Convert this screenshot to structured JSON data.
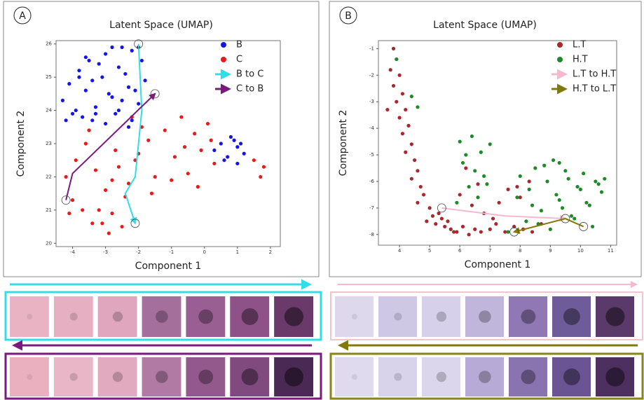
{
  "chart_data": [
    {
      "type": "scatter",
      "panel_label": "A",
      "title": "Latent Space (UMAP)",
      "x_label": "Component 1",
      "y_label": "Component 2",
      "xlim": [
        -4.5,
        2.3
      ],
      "xticks": [
        -4,
        -3,
        -2,
        -1,
        0,
        1,
        2
      ],
      "ylim": [
        19.9,
        26.1
      ],
      "yticks": [
        20,
        21,
        22,
        23,
        24,
        25,
        26
      ],
      "grid": false,
      "legend": "upper right",
      "series": [
        {
          "name": "B",
          "color": "#1515e8",
          "marker": "dot",
          "x": [
            -4.3,
            -4.1,
            -4.0,
            -3.8,
            -3.6,
            -3.5,
            -3.3,
            -3.1,
            -3.0,
            -2.8,
            -2.6,
            -2.5,
            -2.3,
            -2.2,
            -2.0,
            -3.9,
            -3.7,
            -3.4,
            -3.2,
            -2.9,
            -2.7,
            -2.4,
            -2.1,
            -1.9,
            -4.2,
            -3.6,
            -3.0,
            -2.6,
            -2.2,
            -1.8,
            -3.3,
            -2.8,
            -2.5,
            -2.3,
            -3.8,
            -3.4,
            -2.0,
            0.3,
            0.5,
            0.7,
            0.9,
            1.0,
            1.1,
            1.2,
            0.6,
            0.8,
            1.0
          ],
          "values": [
            24.3,
            24.8,
            23.9,
            25.2,
            24.6,
            25.5,
            24.1,
            25.0,
            25.7,
            24.4,
            25.3,
            25.9,
            24.7,
            25.8,
            24.2,
            24.0,
            23.8,
            24.9,
            25.4,
            24.5,
            23.9,
            25.1,
            24.6,
            25.5,
            23.7,
            25.6,
            23.6,
            24.0,
            23.7,
            24.9,
            23.9,
            25.9,
            24.3,
            23.5,
            25.0,
            23.7,
            25.9,
            22.8,
            23.0,
            22.6,
            23.1,
            22.4,
            23.0,
            22.7,
            22.5,
            23.2,
            22.9
          ]
        },
        {
          "name": "C",
          "color": "#e81a1a",
          "marker": "dot",
          "x": [
            -4.2,
            -4.0,
            -3.9,
            -3.7,
            -3.5,
            -3.3,
            -3.1,
            -3.0,
            -2.8,
            -2.7,
            -2.5,
            -2.4,
            -2.2,
            -2.1,
            -1.9,
            -1.7,
            -1.5,
            -3.6,
            -3.2,
            -2.9,
            -2.6,
            -2.3,
            -2.0,
            -1.6,
            -1.2,
            -0.9,
            -0.7,
            -0.5,
            -0.3,
            -0.1,
            0.1,
            0.3,
            -1.0,
            -0.6,
            -0.2,
            0.2,
            1.5,
            1.7,
            1.8,
            -4.1,
            -3.4,
            -2.8
          ],
          "values": [
            22.0,
            21.3,
            22.5,
            21.0,
            23.4,
            22.2,
            20.6,
            21.6,
            20.9,
            22.8,
            20.5,
            21.4,
            23.8,
            22.5,
            23.5,
            23.1,
            22.0,
            23.0,
            21.0,
            20.3,
            22.3,
            21.8,
            22.7,
            21.5,
            23.4,
            22.6,
            23.8,
            22.1,
            23.3,
            22.8,
            23.6,
            22.4,
            21.9,
            22.9,
            21.7,
            23.1,
            22.5,
            22.0,
            22.3,
            20.9,
            20.6,
            21.9
          ]
        },
        {
          "name": "B to C",
          "color": "#33dde6",
          "marker": "arrow",
          "x": [
            -2.0,
            -1.9,
            -2.1,
            -2.4,
            -2.1
          ],
          "values": [
            26.0,
            24.0,
            22.0,
            21.5,
            20.6
          ]
        },
        {
          "name": "C to B",
          "color": "#7a1a7e",
          "marker": "arrow",
          "x": [
            -4.2,
            -4.0,
            -1.5
          ],
          "values": [
            21.3,
            22.1,
            24.5
          ]
        }
      ]
    },
    {
      "type": "scatter",
      "panel_label": "B",
      "title": "Latent Space (UMAP)",
      "x_label": "Component 1",
      "y_label": "Component 2",
      "xlim": [
        3.3,
        11.2
      ],
      "xticks": [
        4,
        5,
        6,
        7,
        8,
        9,
        10,
        11
      ],
      "ylim": [
        -8.4,
        -0.7
      ],
      "yticks": [
        -1,
        -2,
        -3,
        -4,
        -5,
        -6,
        -7,
        -8
      ],
      "grid": false,
      "legend": "upper right",
      "series": [
        {
          "name": "L.T",
          "color": "#a8282e",
          "marker": "dot",
          "x": [
            3.8,
            3.9,
            3.7,
            4.0,
            3.8,
            4.1,
            3.9,
            4.2,
            4.0,
            3.6,
            4.3,
            4.1,
            4.4,
            4.2,
            4.5,
            4.6,
            4.4,
            4.7,
            4.8,
            4.6,
            5.0,
            5.1,
            4.9,
            5.3,
            5.2,
            5.5,
            5.4,
            5.7,
            5.6,
            5.9,
            6.1,
            6.3,
            6.5,
            6.7,
            7.0,
            7.2,
            7.5,
            7.8,
            8.1,
            8.4,
            8.7,
            6.0,
            6.4,
            6.8,
            7.3,
            7.9,
            8.3,
            6.2,
            6.6,
            7.1,
            5.8,
            8.0,
            7.6
          ],
          "values": [
            -1.0,
            -1.4,
            -1.8,
            -2.0,
            -2.4,
            -2.7,
            -3.0,
            -3.3,
            -3.6,
            -3.3,
            -3.9,
            -4.2,
            -4.6,
            -4.9,
            -5.2,
            -5.6,
            -5.9,
            -6.2,
            -6.5,
            -6.8,
            -7.0,
            -7.3,
            -7.5,
            -7.2,
            -7.6,
            -7.7,
            -7.4,
            -7.8,
            -7.5,
            -7.9,
            -7.7,
            -8.0,
            -7.8,
            -7.9,
            -7.8,
            -7.6,
            -7.9,
            -7.7,
            -7.8,
            -7.9,
            -7.6,
            -6.5,
            -6.9,
            -7.2,
            -6.8,
            -6.2,
            -6.0,
            -5.5,
            -6.1,
            -7.4,
            -7.9,
            -6.6,
            -6.3
          ]
        },
        {
          "name": "H.T",
          "color": "#1f8a2a",
          "marker": "dot",
          "x": [
            3.9,
            4.4,
            4.6,
            6.0,
            6.2,
            6.4,
            6.5,
            6.7,
            6.3,
            6.1,
            6.8,
            6.6,
            7.0,
            6.9,
            5.9,
            8.0,
            8.3,
            8.5,
            8.7,
            8.9,
            9.1,
            9.3,
            9.5,
            9.7,
            9.9,
            10.1,
            10.3,
            10.5,
            10.7,
            8.6,
            8.8,
            9.0,
            9.2,
            9.4,
            9.6,
            9.8,
            10.0,
            10.2,
            10.4,
            10.6,
            8.2,
            7.9,
            7.6,
            8.4,
            9.3,
            10.8
          ],
          "values": [
            -1.4,
            -2.8,
            -3.2,
            -4.5,
            -5.0,
            -4.3,
            -5.6,
            -4.9,
            -6.2,
            -5.3,
            -5.8,
            -6.6,
            -4.6,
            -6.1,
            -6.8,
            -5.8,
            -6.3,
            -5.5,
            -7.1,
            -6.0,
            -5.2,
            -6.7,
            -5.6,
            -7.3,
            -6.2,
            -5.7,
            -6.9,
            -6.0,
            -6.4,
            -7.6,
            -5.4,
            -7.8,
            -6.5,
            -7.0,
            -5.9,
            -7.4,
            -6.3,
            -6.8,
            -7.7,
            -6.1,
            -7.5,
            -6.6,
            -7.9,
            -6.9,
            -5.3,
            -5.9
          ]
        },
        {
          "name": "L.T to H.T",
          "color": "#f5b8cc",
          "marker": "arrow",
          "x": [
            5.4,
            7.5,
            9.5
          ],
          "values": [
            -7.0,
            -7.3,
            -7.4
          ]
        },
        {
          "name": "H.T to L.T",
          "color": "#7f7a0a",
          "marker": "arrow",
          "x": [
            10.1,
            9.5,
            7.8
          ],
          "values": [
            -7.7,
            -7.4,
            -7.9
          ]
        }
      ]
    }
  ]
}
